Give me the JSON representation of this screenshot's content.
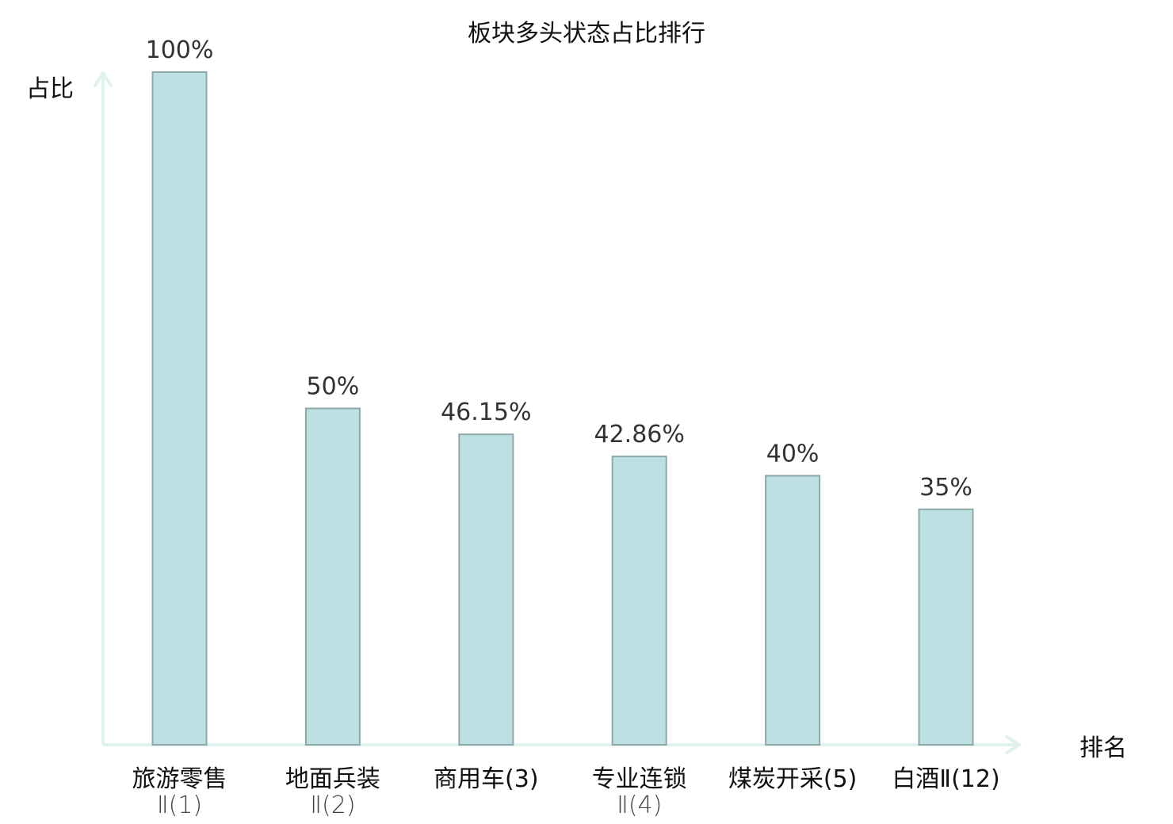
{
  "chart_data": {
    "type": "bar",
    "title": "板块多头状态占比排行",
    "ylabel": "占比",
    "xlabel": "排名",
    "ylim": [
      0,
      100
    ],
    "grid": false,
    "legend": "none",
    "categories": [
      {
        "name_lines": [
          "旅游零售",
          "Ⅱ(1)"
        ],
        "highlight": false
      },
      {
        "name_lines": [
          "地面兵装",
          "Ⅱ(2)"
        ],
        "highlight": false
      },
      {
        "name_lines": [
          "商用车(3)"
        ],
        "highlight": false
      },
      {
        "name_lines": [
          "专业连锁",
          "Ⅱ(4)"
        ],
        "highlight": false
      },
      {
        "name_lines": [
          "煤炭开采(5)"
        ],
        "highlight": false
      },
      {
        "name_lines": [
          "白酒Ⅱ(12)"
        ],
        "highlight": true
      }
    ],
    "values": [
      100,
      50,
      46.15,
      42.86,
      40,
      35
    ],
    "value_labels": [
      "100%",
      "50%",
      "46.15%",
      "42.86%",
      "40%",
      "35%"
    ],
    "colors": {
      "bar_fill": "#bde0e3",
      "bar_stroke": "#8fa7a9",
      "axis": "#e0f2ef",
      "highlight_text": "#e02020"
    }
  }
}
